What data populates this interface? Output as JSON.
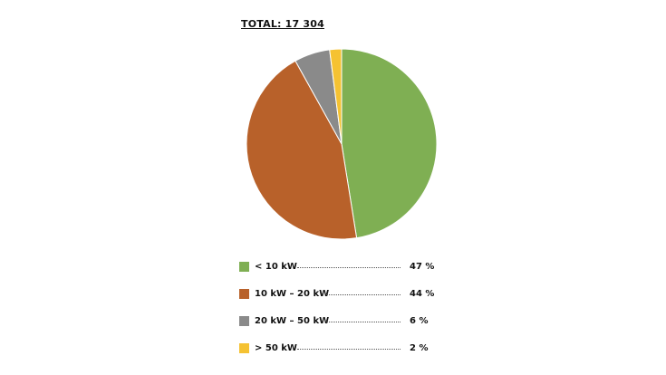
{
  "chart_data": {
    "type": "pie",
    "title": "TOTAL: 17 304",
    "start": "12 o'clock",
    "direction": "clockwise",
    "legend_placement": "bottom",
    "slices": [
      {
        "label": "< 10 kW",
        "value": 47,
        "display": "47 %",
        "color": "#7faf53"
      },
      {
        "label": "10 kW – 20 kW",
        "value": 44,
        "display": "44 %",
        "color": "#b8612a"
      },
      {
        "label": "20 kW – 50 kW",
        "value": 6,
        "display": "6 %",
        "color": "#8a8a8a"
      },
      {
        "label": "> 50 kW",
        "value": 2,
        "display": "2 %",
        "color": "#f5c232"
      }
    ]
  }
}
